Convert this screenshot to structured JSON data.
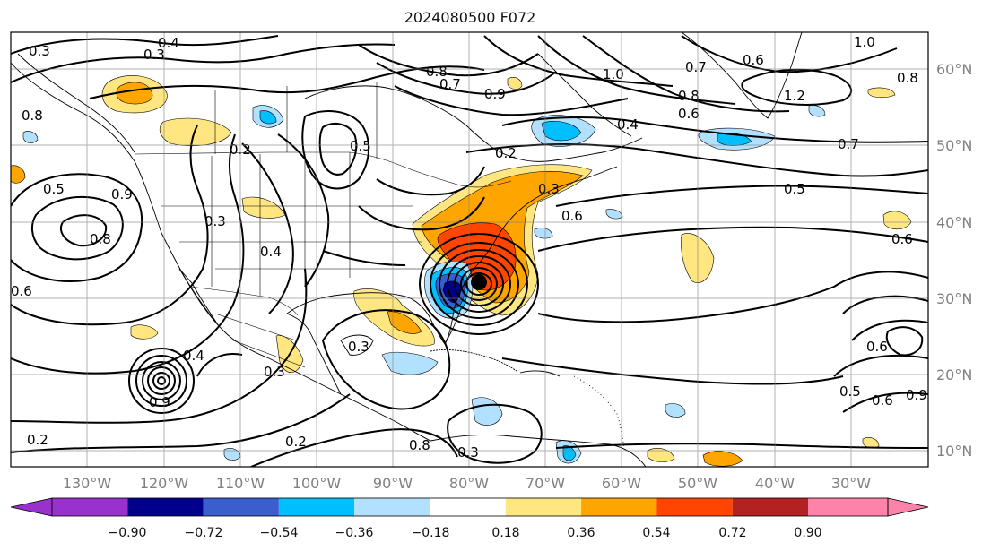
{
  "title": "2024080500 F072",
  "lon_labels": [
    "130°W",
    "120°W",
    "110°W",
    "100°W",
    "90°W",
    "80°W",
    "70°W",
    "60°W",
    "50°W",
    "40°W",
    "30°W"
  ],
  "lat_labels": [
    "60°N",
    "50°N",
    "40°N",
    "30°N",
    "20°N",
    "10°N"
  ],
  "colorbar": {
    "tick_labels": [
      "−0.90",
      "−0.72",
      "−0.54",
      "−0.36",
      "−0.18",
      "0.18",
      "0.36",
      "0.54",
      "0.72",
      "0.90"
    ],
    "colors": [
      "#9932cc",
      "#00008b",
      "#3a5fcd",
      "#00bfff",
      "#b2e0ff",
      "#ffffff",
      "#ffe680",
      "#ffa500",
      "#ff4500",
      "#b22222",
      "#ff82ab"
    ]
  },
  "contour_labels": [
    "0.3",
    "0.4",
    "0.3",
    "0.8",
    "0.7",
    "0.9",
    "1.0",
    "0.8",
    "0.7",
    "0.6",
    "1.0",
    "0.8",
    "0.6",
    "0.4",
    "1.2",
    "0.7",
    "0.8",
    "0.5",
    "0.2",
    "0.6",
    "0.5",
    "0.6",
    "0.2",
    "0.3",
    "0.4",
    "0.5",
    "0.8",
    "0.9",
    "0.6",
    "0.3",
    "0.3",
    "0.3",
    "0.2",
    "0.2",
    "0.8",
    "0.3",
    "0.5",
    "0.6",
    "0.6",
    "0.4",
    "0.9",
    "0.9"
  ],
  "storm_marker": "storm-center"
}
